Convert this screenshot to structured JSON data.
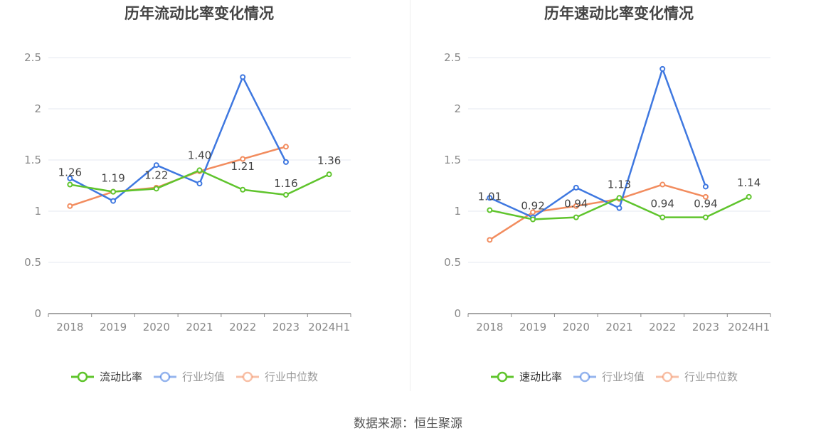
{
  "source_text": "数据来源：恒生聚源",
  "chart_data": [
    {
      "type": "line",
      "title": "历年流动比率变化情况",
      "categories": [
        "2018",
        "2019",
        "2020",
        "2021",
        "2022",
        "2023",
        "2024H1"
      ],
      "yticks": [
        "0",
        "0.5",
        "1",
        "1.5",
        "2",
        "2.5"
      ],
      "ylim": [
        0,
        2.5
      ],
      "grid": true,
      "legend_position": "bottom",
      "series": [
        {
          "name": "流动比率",
          "color": "#5fc42c",
          "values": [
            1.26,
            1.19,
            1.22,
            1.4,
            1.21,
            1.16,
            1.36
          ],
          "labels": [
            "1.26",
            "1.19",
            "1.22",
            "1.40",
            "1.21",
            "1.16",
            "1.36"
          ]
        },
        {
          "name": "行业均值",
          "color": "#3f78e0",
          "values": [
            1.32,
            1.1,
            1.45,
            1.27,
            2.31,
            1.48,
            null
          ]
        },
        {
          "name": "行业中位数",
          "color": "#f28c5e",
          "values": [
            1.05,
            1.19,
            1.23,
            1.39,
            1.51,
            1.63,
            null
          ]
        }
      ]
    },
    {
      "type": "line",
      "title": "历年速动比率变化情况",
      "categories": [
        "2018",
        "2019",
        "2020",
        "2021",
        "2022",
        "2023",
        "2024H1"
      ],
      "yticks": [
        "0",
        "0.5",
        "1",
        "1.5",
        "2",
        "2.5"
      ],
      "ylim": [
        0,
        2.5
      ],
      "grid": true,
      "legend_position": "bottom",
      "series": [
        {
          "name": "速动比率",
          "color": "#5fc42c",
          "values": [
            1.01,
            0.92,
            0.94,
            1.13,
            0.94,
            0.94,
            1.14
          ],
          "labels": [
            "1.01",
            "0.92",
            "0.94",
            "1.13",
            "0.94",
            "0.94",
            "1.14"
          ]
        },
        {
          "name": "行业均值",
          "color": "#3f78e0",
          "values": [
            1.13,
            0.94,
            1.23,
            1.03,
            2.39,
            1.24,
            null
          ]
        },
        {
          "name": "行业中位数",
          "color": "#f28c5e",
          "values": [
            0.72,
            0.99,
            1.05,
            1.12,
            1.26,
            1.14,
            null
          ]
        }
      ]
    }
  ]
}
